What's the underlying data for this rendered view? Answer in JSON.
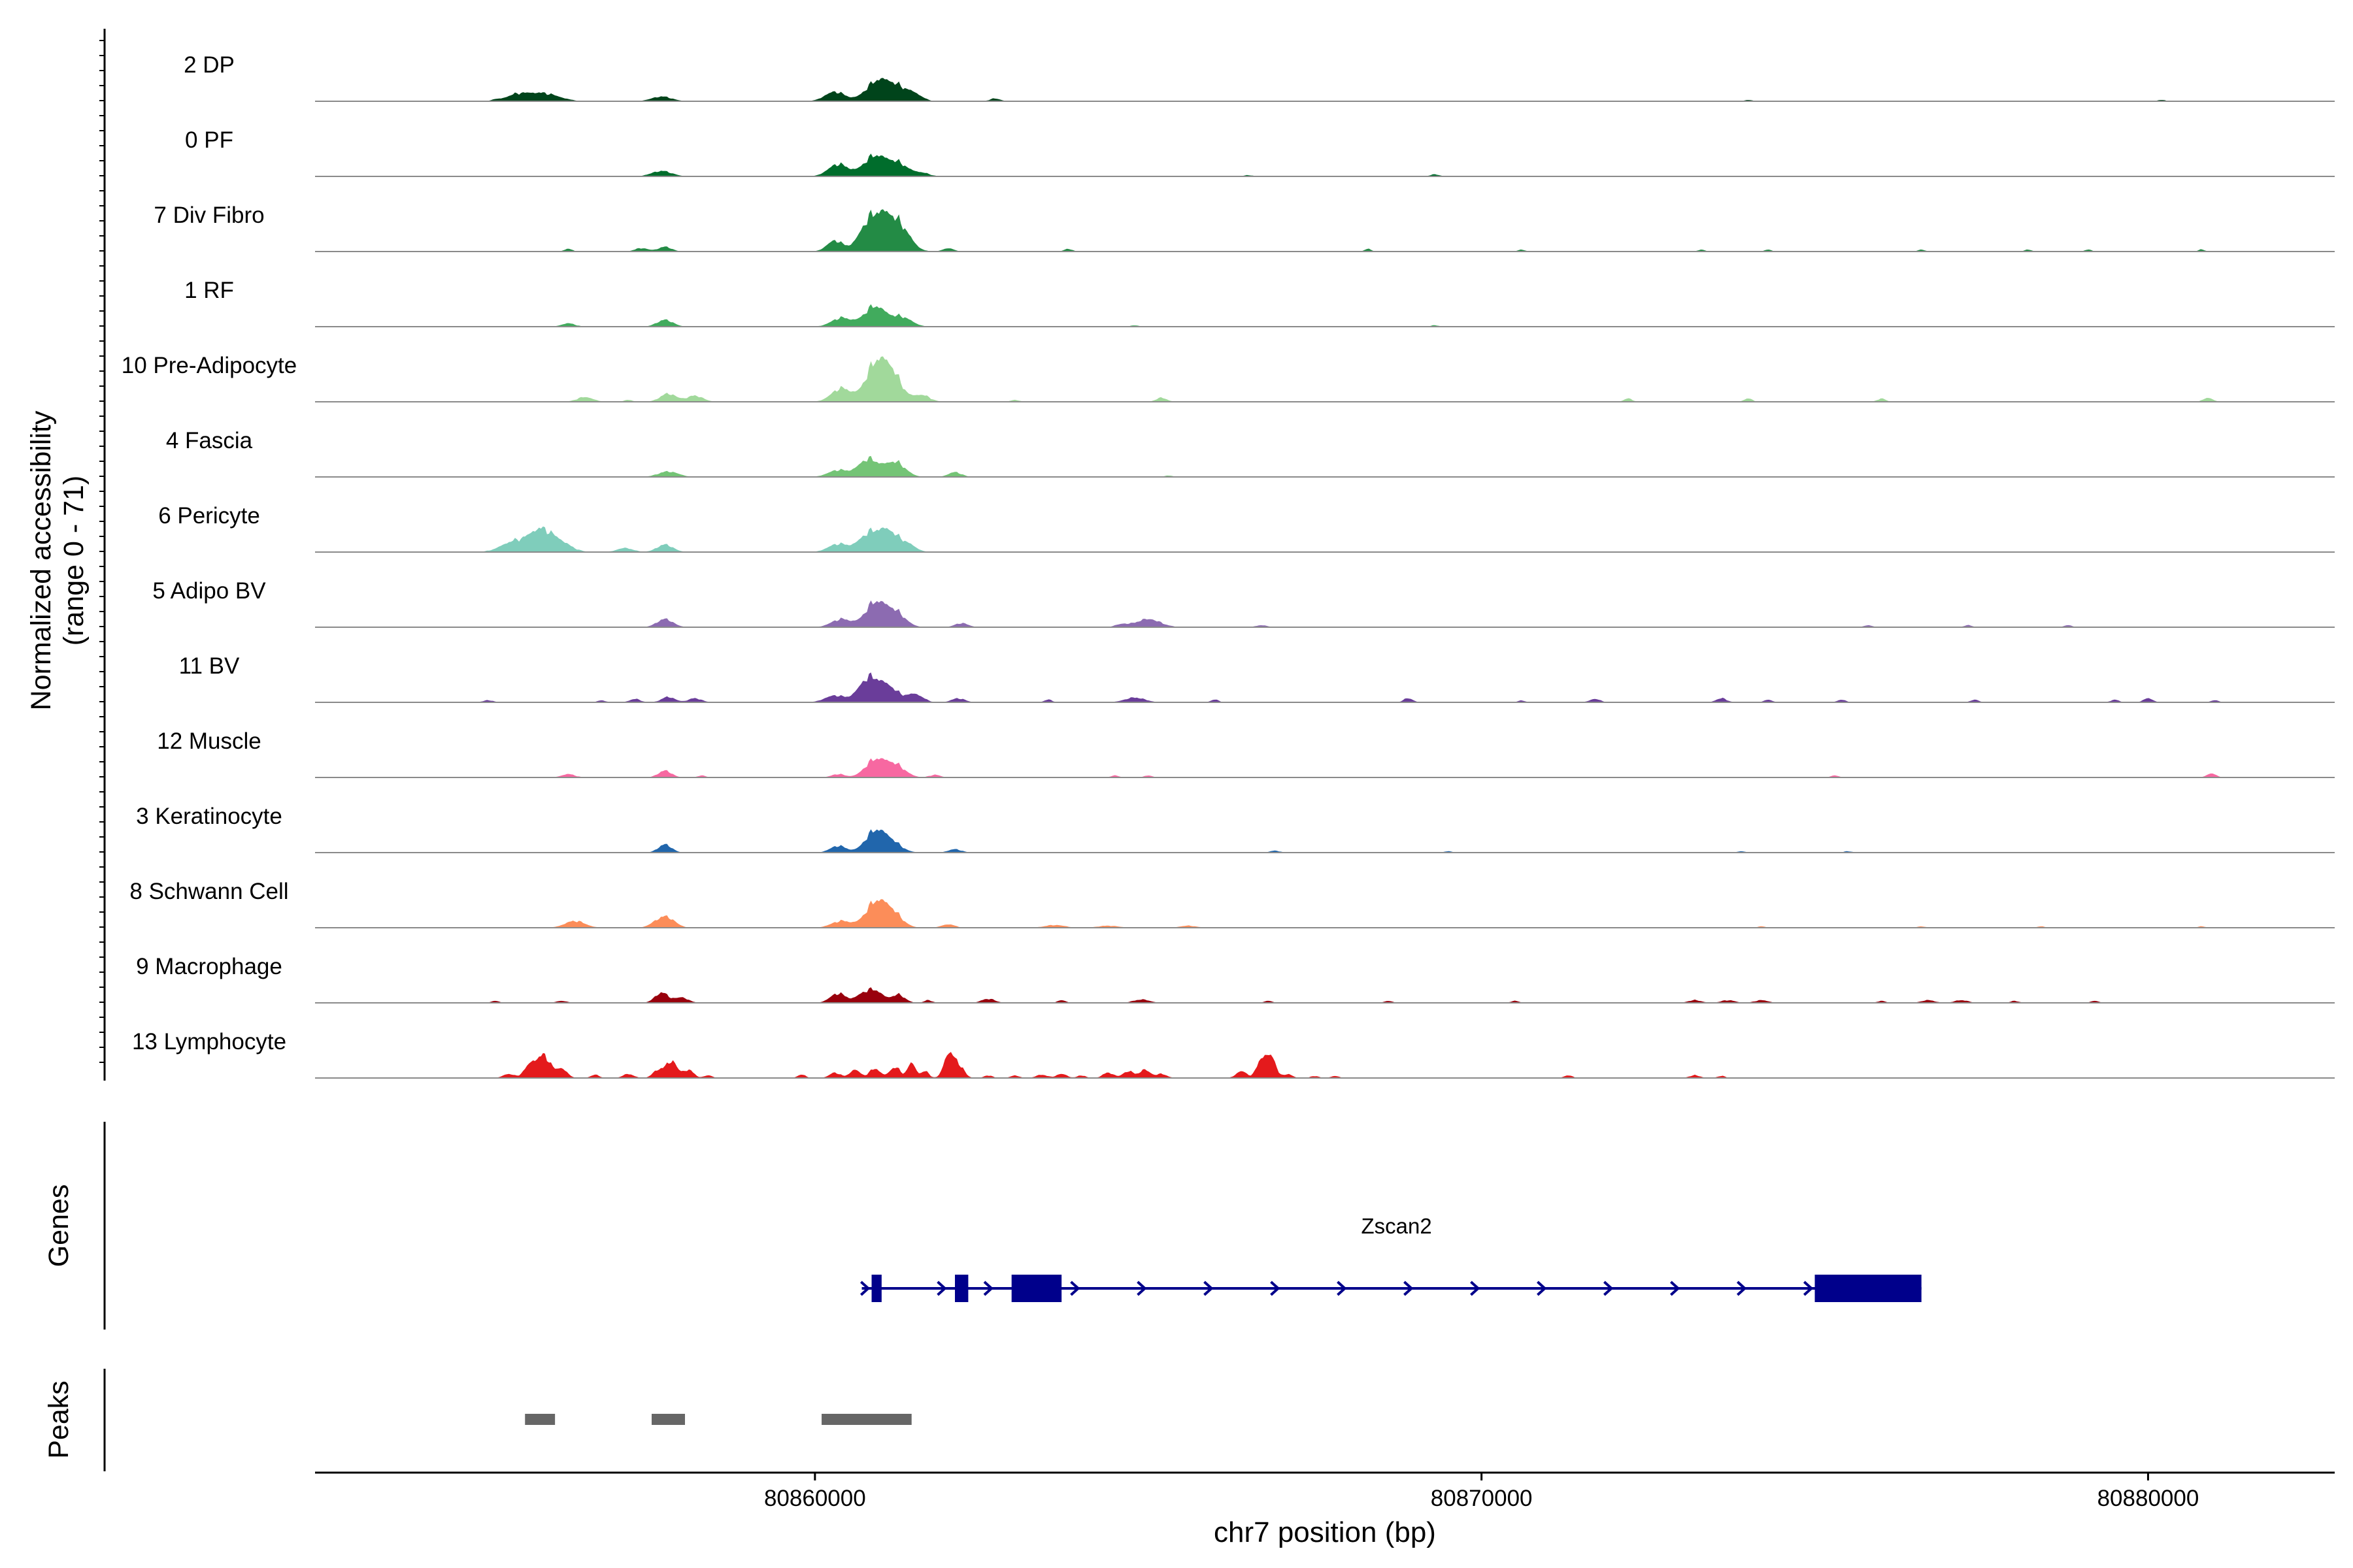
{
  "chart_data": {
    "type": "area",
    "ylabel_line1": "Normalized accessibility",
    "ylabel_line2": "(range 0 - 71)",
    "xlabel": "chr7 position (bp)",
    "xlim": [
      80852500,
      80882800
    ],
    "x_ticks": [
      80860000,
      80870000,
      80880000
    ],
    "x_tick_labels": [
      "80860000",
      "80870000",
      "80880000"
    ],
    "tracks": [
      {
        "label": "2 DP",
        "color": "#00441b",
        "peaks": [
          [
            80855800,
            10,
            250
          ],
          [
            80855500,
            6,
            150
          ],
          [
            80856050,
            4,
            200
          ],
          [
            80857700,
            7,
            150
          ],
          [
            80860300,
            14,
            150
          ],
          [
            80860950,
            30,
            180
          ],
          [
            80861250,
            16,
            150
          ],
          [
            80861500,
            9,
            120
          ],
          [
            80862700,
            4,
            80
          ],
          [
            80855200,
            2,
            60
          ],
          [
            80874000,
            2,
            60
          ],
          [
            80880200,
            2,
            60
          ]
        ]
      },
      {
        "label": "0 PF",
        "color": "#006d2c",
        "peaks": [
          [
            80857700,
            8,
            150
          ],
          [
            80860350,
            18,
            150
          ],
          [
            80860900,
            30,
            170
          ],
          [
            80861250,
            18,
            150
          ],
          [
            80861600,
            5,
            120
          ],
          [
            80866500,
            2,
            60
          ],
          [
            80869300,
            3,
            70
          ]
        ]
      },
      {
        "label": "7 Div Fibro",
        "color": "#238b45",
        "peaks": [
          [
            80860300,
            16,
            120
          ],
          [
            80860800,
            38,
            150
          ],
          [
            80861050,
            42,
            150
          ],
          [
            80861300,
            30,
            150
          ],
          [
            80862000,
            5,
            80
          ],
          [
            80863800,
            4,
            60
          ],
          [
            80856300,
            4,
            60
          ],
          [
            80857400,
            5,
            100
          ],
          [
            80857750,
            7,
            100
          ],
          [
            80868300,
            4,
            50
          ],
          [
            80870600,
            3,
            50
          ],
          [
            80873300,
            3,
            50
          ],
          [
            80874300,
            3,
            50
          ],
          [
            80876600,
            3,
            50
          ],
          [
            80878200,
            3,
            50
          ],
          [
            80879100,
            3,
            50
          ],
          [
            80880800,
            3,
            50
          ]
        ]
      },
      {
        "label": "1 RF",
        "color": "#41ab5d",
        "peaks": [
          [
            80856300,
            5,
            100
          ],
          [
            80857750,
            10,
            120
          ],
          [
            80860400,
            13,
            150
          ],
          [
            80860900,
            30,
            160
          ],
          [
            80861300,
            14,
            150
          ],
          [
            80864800,
            2,
            60
          ],
          [
            80869300,
            2,
            60
          ]
        ]
      },
      {
        "label": "10 Pre-Adipocyte",
        "color": "#a1d99b",
        "peaks": [
          [
            80856550,
            7,
            120
          ],
          [
            80857800,
            12,
            120
          ],
          [
            80858200,
            9,
            120
          ],
          [
            80860400,
            20,
            150
          ],
          [
            80860900,
            50,
            150
          ],
          [
            80861150,
            40,
            150
          ],
          [
            80861600,
            10,
            120
          ],
          [
            80865200,
            6,
            80
          ],
          [
            80872200,
            5,
            60
          ],
          [
            80874000,
            5,
            60
          ],
          [
            80876000,
            5,
            60
          ],
          [
            80880900,
            6,
            70
          ],
          [
            80863000,
            3,
            60
          ],
          [
            80857200,
            3,
            60
          ]
        ]
      },
      {
        "label": "4 Fascia",
        "color": "#74c476",
        "peaks": [
          [
            80857800,
            8,
            150
          ],
          [
            80860350,
            10,
            150
          ],
          [
            80860800,
            26,
            150
          ],
          [
            80861200,
            22,
            150
          ],
          [
            80862100,
            7,
            100
          ],
          [
            80865300,
            2,
            60
          ]
        ]
      },
      {
        "label": "6 Pericyte",
        "color": "#7fcdbb",
        "peaks": [
          [
            80855500,
            16,
            200
          ],
          [
            80855850,
            25,
            150
          ],
          [
            80856050,
            14,
            150
          ],
          [
            80856250,
            8,
            150
          ],
          [
            80857150,
            6,
            120
          ],
          [
            80857750,
            11,
            120
          ],
          [
            80860350,
            12,
            150
          ],
          [
            80860800,
            25,
            150
          ],
          [
            80861100,
            30,
            150
          ],
          [
            80861400,
            10,
            120
          ]
        ]
      },
      {
        "label": "5 Adipo BV",
        "color": "#8c6bb1",
        "peaks": [
          [
            80857750,
            12,
            120
          ],
          [
            80860400,
            12,
            150
          ],
          [
            80860900,
            35,
            150
          ],
          [
            80861200,
            22,
            150
          ],
          [
            80862200,
            6,
            100
          ],
          [
            80865000,
            12,
            180
          ],
          [
            80864600,
            4,
            100
          ],
          [
            80866700,
            3,
            80
          ],
          [
            80875800,
            3,
            60
          ],
          [
            80877300,
            3,
            60
          ],
          [
            80878800,
            3,
            60
          ]
        ]
      },
      {
        "label": "11 BV",
        "color": "#6a3d9a",
        "peaks": [
          [
            80855100,
            3,
            80
          ],
          [
            80856800,
            3,
            60
          ],
          [
            80857300,
            5,
            80
          ],
          [
            80857800,
            8,
            100
          ],
          [
            80858200,
            6,
            100
          ],
          [
            80860300,
            10,
            150
          ],
          [
            80860800,
            34,
            150
          ],
          [
            80861100,
            22,
            150
          ],
          [
            80861500,
            12,
            120
          ],
          [
            80862150,
            6,
            100
          ],
          [
            80863500,
            4,
            60
          ],
          [
            80864800,
            7,
            150
          ],
          [
            80866000,
            4,
            60
          ],
          [
            80868900,
            6,
            70
          ],
          [
            80870600,
            3,
            50
          ],
          [
            80871700,
            5,
            80
          ],
          [
            80873600,
            6,
            80
          ],
          [
            80874300,
            4,
            60
          ],
          [
            80875400,
            4,
            60
          ],
          [
            80877400,
            4,
            60
          ],
          [
            80879500,
            4,
            60
          ],
          [
            80880000,
            6,
            70
          ],
          [
            80881000,
            3,
            60
          ]
        ]
      },
      {
        "label": "12 Muscle",
        "color": "#f768a1",
        "peaks": [
          [
            80856300,
            5,
            100
          ],
          [
            80857750,
            10,
            100
          ],
          [
            80858300,
            3,
            60
          ],
          [
            80860350,
            5,
            100
          ],
          [
            80860900,
            25,
            150
          ],
          [
            80861200,
            18,
            150
          ],
          [
            80861800,
            4,
            80
          ],
          [
            80864500,
            3,
            60
          ],
          [
            80865000,
            3,
            60
          ],
          [
            80875300,
            3,
            60
          ],
          [
            80880950,
            6,
            70
          ]
        ]
      },
      {
        "label": "3 Keratinocyte",
        "color": "#2166ac",
        "peaks": [
          [
            80857750,
            12,
            100
          ],
          [
            80860350,
            10,
            120
          ],
          [
            80860900,
            30,
            150
          ],
          [
            80861150,
            14,
            150
          ],
          [
            80862100,
            5,
            100
          ],
          [
            80866900,
            3,
            70
          ],
          [
            80869500,
            2,
            60
          ],
          [
            80873900,
            2,
            60
          ],
          [
            80875500,
            2,
            60
          ]
        ]
      },
      {
        "label": "8 Schwann Cell",
        "color": "#fc8d59",
        "peaks": [
          [
            80856400,
            10,
            150
          ],
          [
            80857650,
            8,
            120
          ],
          [
            80857800,
            12,
            120
          ],
          [
            80860400,
            10,
            150
          ],
          [
            80860900,
            34,
            150
          ],
          [
            80861150,
            22,
            150
          ],
          [
            80862000,
            5,
            100
          ],
          [
            80863600,
            4,
            150
          ],
          [
            80864400,
            3,
            150
          ],
          [
            80865600,
            3,
            120
          ],
          [
            80874200,
            2,
            60
          ],
          [
            80876600,
            2,
            60
          ],
          [
            80878400,
            2,
            60
          ],
          [
            80880800,
            2,
            60
          ]
        ]
      },
      {
        "label": "9 Macrophage",
        "color": "#99000d",
        "peaks": [
          [
            80855200,
            3,
            60
          ],
          [
            80856200,
            3,
            80
          ],
          [
            80857700,
            15,
            100
          ],
          [
            80858000,
            8,
            100
          ],
          [
            80860350,
            14,
            120
          ],
          [
            80860700,
            10,
            100
          ],
          [
            80860900,
            18,
            120
          ],
          [
            80861250,
            12,
            100
          ],
          [
            80861700,
            4,
            60
          ],
          [
            80862600,
            6,
            100
          ],
          [
            80863700,
            4,
            60
          ],
          [
            80864900,
            5,
            120
          ],
          [
            80866800,
            3,
            60
          ],
          [
            80868600,
            3,
            60
          ],
          [
            80870500,
            3,
            60
          ],
          [
            80873200,
            4,
            100
          ],
          [
            80873700,
            4,
            100
          ],
          [
            80874200,
            4,
            100
          ],
          [
            80876000,
            3,
            60
          ],
          [
            80876700,
            4,
            100
          ],
          [
            80877200,
            4,
            100
          ],
          [
            80878000,
            3,
            60
          ],
          [
            80879200,
            3,
            60
          ]
        ]
      },
      {
        "label": "13 Lymphocyte",
        "color": "#e41a1c",
        "peaks": [
          [
            80855400,
            6,
            80
          ],
          [
            80855750,
            22,
            100
          ],
          [
            80855950,
            30,
            90
          ],
          [
            80856200,
            14,
            80
          ],
          [
            80856700,
            5,
            60
          ],
          [
            80857200,
            6,
            80
          ],
          [
            80857650,
            12,
            80
          ],
          [
            80857850,
            25,
            80
          ],
          [
            80858100,
            12,
            80
          ],
          [
            80858400,
            4,
            60
          ],
          [
            80859800,
            5,
            60
          ],
          [
            80860300,
            8,
            80
          ],
          [
            80860600,
            12,
            80
          ],
          [
            80860900,
            14,
            80
          ],
          [
            80861200,
            16,
            80
          ],
          [
            80861450,
            22,
            60
          ],
          [
            80861650,
            10,
            60
          ],
          [
            80862000,
            34,
            70
          ],
          [
            80862150,
            20,
            80
          ],
          [
            80862600,
            4,
            60
          ],
          [
            80863000,
            4,
            60
          ],
          [
            80863400,
            5,
            80
          ],
          [
            80863700,
            6,
            80
          ],
          [
            80864000,
            4,
            60
          ],
          [
            80864400,
            8,
            80
          ],
          [
            80864700,
            10,
            80
          ],
          [
            80864950,
            12,
            80
          ],
          [
            80865200,
            6,
            80
          ],
          [
            80866400,
            10,
            80
          ],
          [
            80866700,
            28,
            70
          ],
          [
            80866850,
            30,
            70
          ],
          [
            80867100,
            6,
            60
          ],
          [
            80867500,
            3,
            60
          ],
          [
            80867800,
            3,
            60
          ],
          [
            80871300,
            4,
            60
          ],
          [
            80873200,
            4,
            80
          ],
          [
            80873600,
            3,
            60
          ]
        ]
      }
    ],
    "genes": {
      "label": "Genes",
      "color": "#00008b",
      "name": "Zscan2",
      "strand": "+",
      "tx_start": 80860850,
      "tx_end": 80876600,
      "exons": [
        [
          80860850,
          80861000
        ],
        [
          80862100,
          80862300
        ],
        [
          80862950,
          80863700
        ],
        [
          80875000,
          80876600
        ]
      ]
    },
    "peaks_track": {
      "label": "Peaks",
      "color": "#666666",
      "regions": [
        [
          80855650,
          80856100
        ],
        [
          80857550,
          80858050
        ],
        [
          80860100,
          80861450
        ]
      ]
    }
  }
}
